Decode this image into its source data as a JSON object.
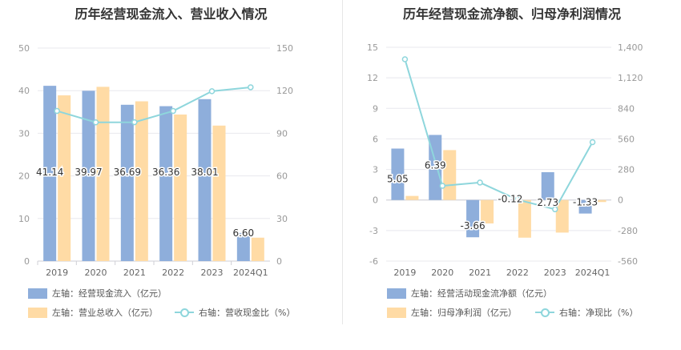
{
  "left_chart_title": "历年经营现金流入、营业收入情况",
  "right_chart_title": "历年经营现金流净额、归母净利润情况",
  "colors": {
    "bar_blue": "#8eaedb",
    "bar_orange": "#ffdba5",
    "line": "#8ed6dc"
  },
  "chart_data": [
    {
      "type": "bar",
      "categories": [
        "2019",
        "2020",
        "2021",
        "2022",
        "2023",
        "2024Q1"
      ],
      "left_axis": {
        "ticks": [
          "0",
          "10",
          "20",
          "30",
          "40",
          "50"
        ],
        "ylim": [
          0,
          50
        ]
      },
      "right_axis": {
        "ticks": [
          "0",
          "30",
          "60",
          "90",
          "120",
          "150"
        ],
        "ylim": [
          0,
          150
        ]
      },
      "series": [
        {
          "name": "左轴：经营现金流入（亿元）",
          "axis": "left",
          "kind": "bar",
          "color": "#8eaedb",
          "values": [
            41.14,
            39.97,
            36.69,
            36.36,
            38.01,
            6.6
          ],
          "labels": [
            "41.14",
            "39.97",
            "36.69",
            "36.36",
            "38.01",
            "6.60"
          ]
        },
        {
          "name": "左轴：营业总收入（亿元）",
          "axis": "left",
          "kind": "bar",
          "color": "#ffdba5",
          "values": [
            38.9,
            40.9,
            37.5,
            34.4,
            31.8,
            5.5
          ]
        },
        {
          "name": "右轴：营收现金比（%）",
          "axis": "right",
          "kind": "line",
          "color": "#8ed6dc",
          "values": [
            105.7,
            97.7,
            97.8,
            105.7,
            119.6,
            122.4
          ]
        }
      ]
    },
    {
      "type": "bar",
      "categories": [
        "2019",
        "2020",
        "2021",
        "2022",
        "2023",
        "2024Q1"
      ],
      "left_axis": {
        "ticks": [
          "-6",
          "-3",
          "0",
          "3",
          "6",
          "9",
          "12",
          "15"
        ],
        "ylim": [
          -6,
          15
        ]
      },
      "right_axis": {
        "ticks": [
          "-560",
          "-280",
          "0",
          "280",
          "560",
          "840",
          "1,120",
          "1,400"
        ],
        "ylim": [
          -560,
          1400
        ]
      },
      "series": [
        {
          "name": "左轴：经营活动现金流净额（亿元）",
          "axis": "left",
          "kind": "bar",
          "color": "#8eaedb",
          "values": [
            5.05,
            6.39,
            -3.66,
            -0.12,
            2.73,
            -1.33
          ],
          "labels": [
            "5.05",
            "6.39",
            "-3.66",
            "-0.12",
            "2.73",
            "-1.33"
          ]
        },
        {
          "name": "左轴：归母净利润（亿元）",
          "axis": "left",
          "kind": "bar",
          "color": "#ffdba5",
          "values": [
            0.4,
            4.9,
            -2.3,
            -3.7,
            -3.2,
            -0.2
          ]
        },
        {
          "name": "右轴：净现比（%）",
          "axis": "right",
          "kind": "line",
          "color": "#8ed6dc",
          "values": [
            1290,
            130,
            160,
            3,
            -85,
            530
          ]
        }
      ]
    }
  ]
}
